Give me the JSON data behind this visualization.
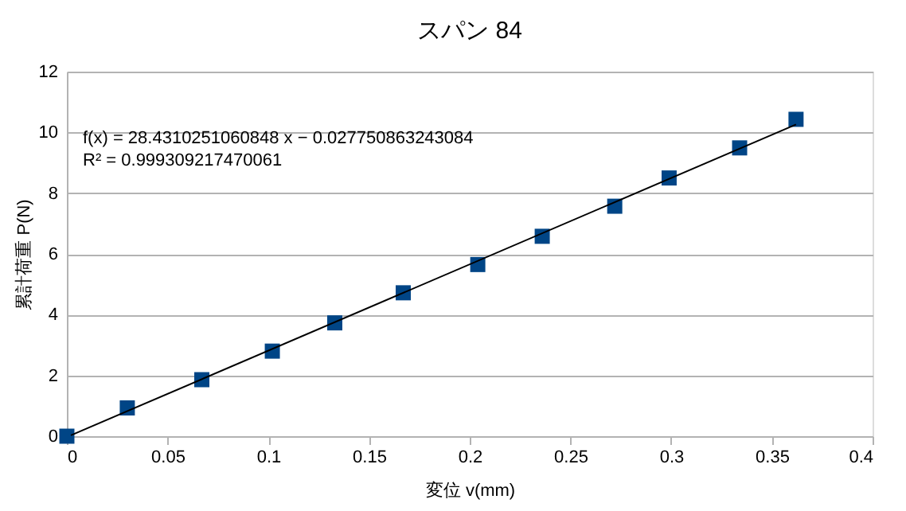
{
  "chart_data": {
    "type": "scatter",
    "title": "スパン 84",
    "xlabel": "変位 v(mm)",
    "ylabel": "累計荷重 P(N)",
    "xlim": [
      0,
      0.4
    ],
    "xticks": [
      0,
      0.05,
      0.1,
      0.15,
      0.2,
      0.25,
      0.3,
      0.35,
      0.4
    ],
    "ylim": [
      0,
      12
    ],
    "yticks": [
      0,
      2,
      4,
      6,
      8,
      10,
      12
    ],
    "grid": "y",
    "annotations": [
      "f(x) = 28.4310251060848 x − 0.027750863243084",
      "R² = 0.999309217470061"
    ],
    "series": [
      {
        "color": "#004586",
        "marker": "square",
        "x": [
          0,
          0.03,
          0.067,
          0.102,
          0.133,
          0.167,
          0.204,
          0.236,
          0.272,
          0.299,
          0.334,
          0.362
        ],
        "values": [
          0,
          0.93,
          1.86,
          2.8,
          3.73,
          4.72,
          5.65,
          6.58,
          7.57,
          8.5,
          9.49,
          10.43
        ]
      },
      {
        "type": "line",
        "color": "#000000",
        "line_style": "solid",
        "x": [
          0.002,
          0.362
        ],
        "values": [
          0.03,
          10.26
        ]
      }
    ]
  }
}
